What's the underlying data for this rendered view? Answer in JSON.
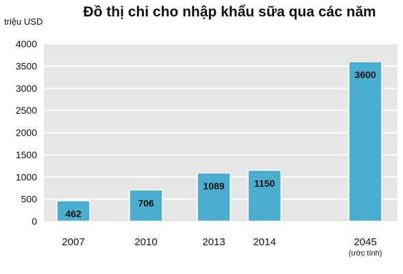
{
  "chart_data": {
    "type": "bar",
    "title": "Đồ thị chi cho nhập khẩu sữa qua các năm",
    "ylabel": "triệu USD",
    "xlabel": "",
    "categories": [
      "2007",
      "2010",
      "2013",
      "2014",
      "2045"
    ],
    "values": [
      462,
      706,
      1089,
      1150,
      3600
    ],
    "data_labels": [
      "462",
      "706",
      "1089",
      "1150",
      "3600"
    ],
    "category_notes": [
      "",
      "",
      "",
      "",
      "(ước tính)"
    ],
    "ylim": [
      0,
      4000
    ],
    "yticks": [
      0,
      500,
      1000,
      1500,
      2000,
      2500,
      3000,
      3500,
      4000
    ],
    "grid": true,
    "legend": "none",
    "colors": {
      "bar": "#4aaed0",
      "plot_bg": "#e6e6e6",
      "grid": "#ffffff"
    }
  }
}
